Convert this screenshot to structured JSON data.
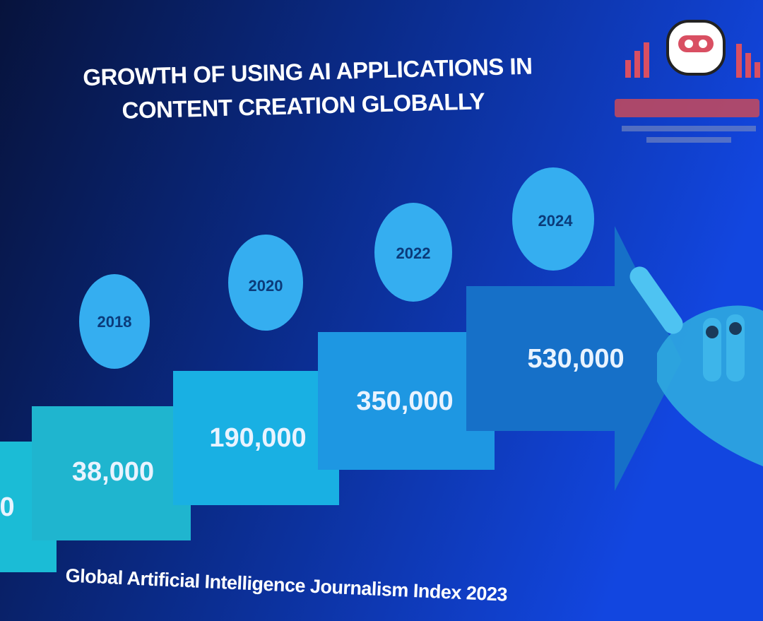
{
  "title": [
    "GROWTH OF USING AI APPLICATIONS IN",
    "CONTENT CREATION GLOBALLY"
  ],
  "steps": [
    {
      "value": "0"
    },
    {
      "year": "2018",
      "value": "38,000"
    },
    {
      "year": "2020",
      "value": "190,000"
    },
    {
      "year": "2022",
      "value": "350,000"
    },
    {
      "year": "2024",
      "value": "530,000"
    }
  ],
  "footer": "Global Artificial Intelligence Journalism Index 2023"
}
